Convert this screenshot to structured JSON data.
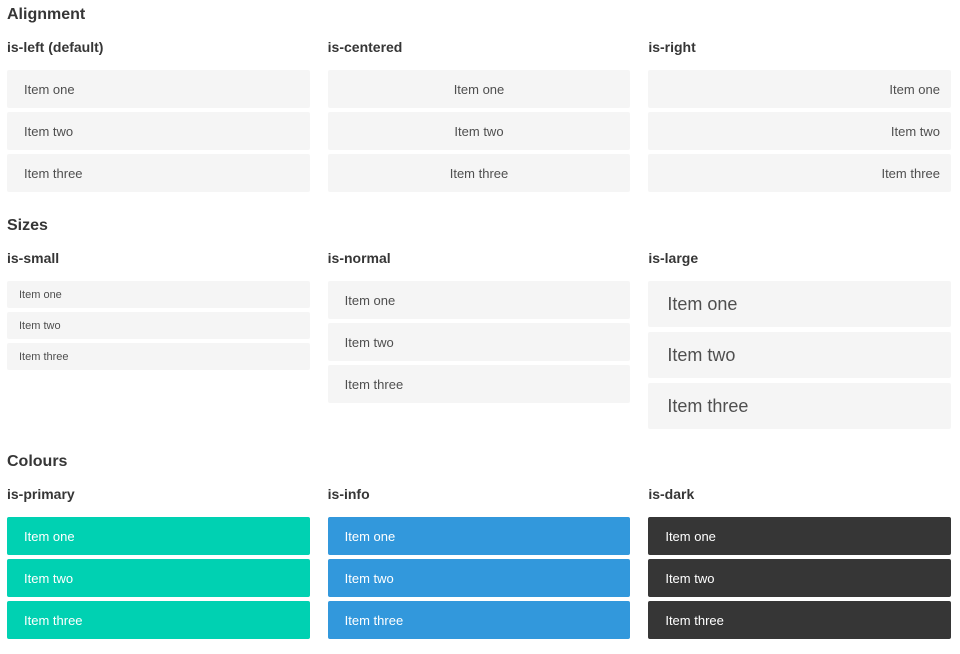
{
  "colors": {
    "primary": "#00d1b2",
    "info": "#3298dc",
    "dark": "#363636",
    "item_background": "#f5f5f5",
    "item_text": "#4f4f4f",
    "heading_text": "#363636",
    "colour_item_text": "#ffffff",
    "page_background": "#ffffff"
  },
  "sections": [
    {
      "title": "Alignment",
      "columns": [
        {
          "label": "is-left (default)",
          "items": [
            "Item one",
            "Item two",
            "Item three"
          ]
        },
        {
          "label": "is-centered",
          "items": [
            "Item one",
            "Item two",
            "Item three"
          ]
        },
        {
          "label": "is-right",
          "items": [
            "Item one",
            "Item two",
            "Item three"
          ]
        }
      ]
    },
    {
      "title": "Sizes",
      "columns": [
        {
          "label": "is-small",
          "items": [
            "Item one",
            "Item two",
            "Item three"
          ]
        },
        {
          "label": "is-normal",
          "items": [
            "Item one",
            "Item two",
            "Item three"
          ]
        },
        {
          "label": "is-large",
          "items": [
            "Item one",
            "Item two",
            "Item three"
          ]
        }
      ]
    },
    {
      "title": "Colours",
      "columns": [
        {
          "label": "is-primary",
          "items": [
            "Item one",
            "Item two",
            "Item three"
          ]
        },
        {
          "label": "is-info",
          "items": [
            "Item one",
            "Item two",
            "Item three"
          ]
        },
        {
          "label": "is-dark",
          "items": [
            "Item one",
            "Item two",
            "Item three"
          ]
        }
      ]
    }
  ]
}
